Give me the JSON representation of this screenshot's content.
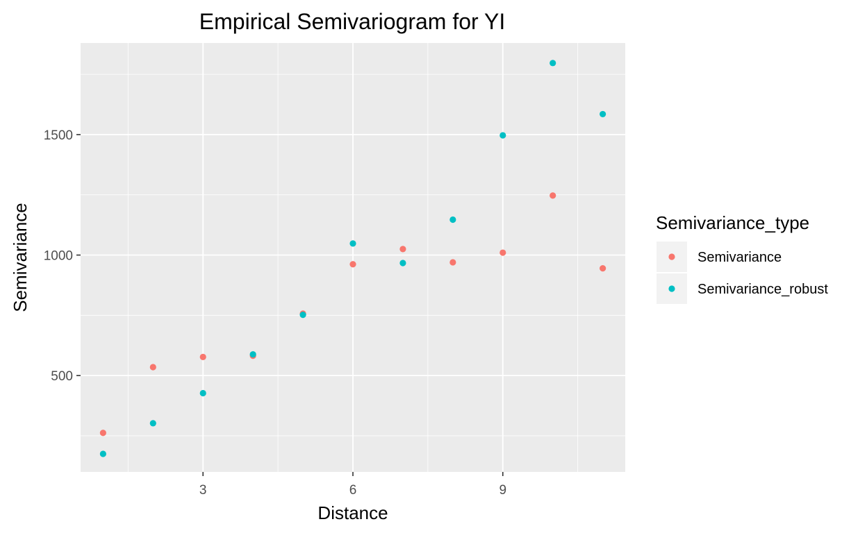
{
  "chart_data": {
    "type": "scatter",
    "title": "Empirical Semivariogram for YI",
    "xlabel": "Distance",
    "ylabel": "Semivariance",
    "xlim": [
      0.55,
      11.45
    ],
    "ylim": [
      100,
      1880
    ],
    "x_ticks": [
      3,
      6,
      9
    ],
    "x_tick_labels": [
      "3",
      "6",
      "9"
    ],
    "y_ticks": [
      500,
      1000,
      1500
    ],
    "y_tick_labels": [
      "500",
      "1000",
      "1500"
    ],
    "grid": true,
    "legend": {
      "title": "Semivariance_type",
      "position": "right"
    },
    "series": [
      {
        "name": "Semivariance",
        "color": "#F8766D",
        "x": [
          1,
          2,
          3,
          4,
          5,
          6,
          7,
          8,
          9,
          10,
          11
        ],
        "values": [
          262,
          535,
          577,
          582,
          757,
          962,
          1025,
          970,
          1010,
          1247,
          945
        ]
      },
      {
        "name": "Semivariance_robust",
        "color": "#00BFC4",
        "x": [
          1,
          2,
          3,
          4,
          5,
          6,
          7,
          8,
          9,
          10,
          11
        ],
        "values": [
          175,
          302,
          427,
          588,
          752,
          1048,
          967,
          1147,
          1497,
          1797,
          1585
        ]
      }
    ]
  },
  "colors": {
    "panel_background": "#EBEBEB",
    "grid_major": "#FFFFFF",
    "legend_key_background": "#F2F2F2"
  }
}
